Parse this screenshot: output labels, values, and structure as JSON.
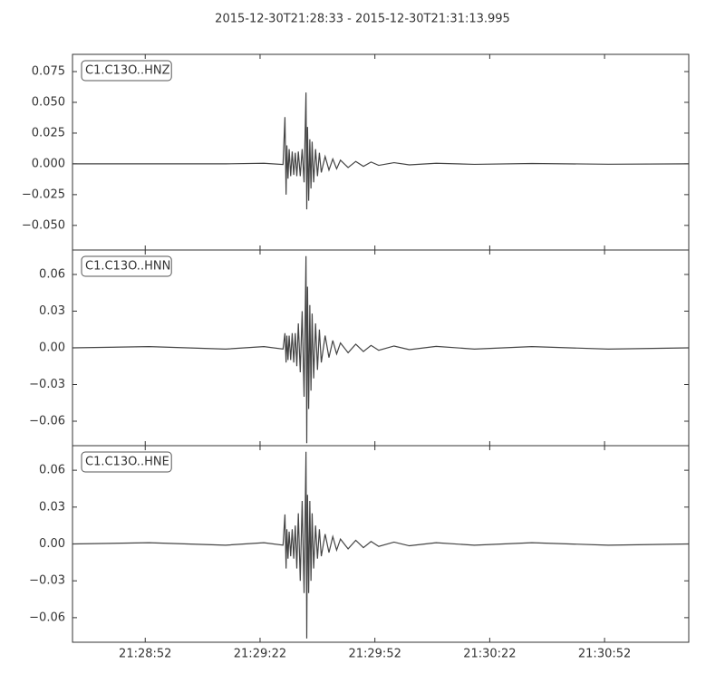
{
  "title": "2015-12-30T21:28:33  -  2015-12-30T21:31:13.995",
  "chart_data": [
    {
      "type": "line",
      "color": "#444444",
      "x": [
        0,
        20,
        40,
        50,
        55,
        55.5,
        55.8,
        56,
        56.3,
        56.6,
        57,
        57.4,
        57.8,
        58.2,
        58.6,
        59,
        59.5,
        60,
        60.5,
        61,
        61.2,
        61.4,
        61.7,
        62,
        62.3,
        62.6,
        63,
        63.5,
        64,
        64.5,
        65,
        66,
        67,
        68,
        69,
        70,
        72,
        74,
        76,
        78,
        80,
        84,
        88,
        95,
        105,
        120,
        140,
        160.995
      ],
      "series": [
        {
          "name": "C1.C13O..HNZ",
          "color": "#444444",
          "values": [
            0,
            0,
            0,
            0.0005,
            -0.0005,
            0.038,
            -0.025,
            0.015,
            -0.012,
            0.012,
            -0.01,
            0.01,
            -0.009,
            0.009,
            -0.01,
            0.01,
            -0.01,
            0.012,
            -0.015,
            0.058,
            -0.037,
            0.03,
            -0.03,
            0.02,
            -0.02,
            0.018,
            -0.015,
            0.012,
            -0.01,
            0.009,
            -0.007,
            0.006,
            -0.005,
            0.004,
            -0.004,
            0.003,
            -0.003,
            0.002,
            -0.002,
            0.0015,
            -0.0012,
            0.001,
            -0.0008,
            0.0005,
            -0.0004,
            0.0003,
            -0.0003,
            0
          ]
        }
      ],
      "xlim": [
        0,
        160.995
      ],
      "ylim": [
        -0.07,
        0.089
      ],
      "yticks": [
        {
          "value": -0.05,
          "label": "−0.050"
        },
        {
          "value": -0.025,
          "label": "−0.025"
        },
        {
          "value": 0,
          "label": "0.000"
        },
        {
          "value": 0.025,
          "label": "0.025"
        },
        {
          "value": 0.05,
          "label": "0.050"
        },
        {
          "value": 0.075,
          "label": "0.075"
        }
      ]
    },
    {
      "type": "line",
      "color": "#444444",
      "x": [
        0,
        20,
        40,
        50,
        55,
        55.5,
        55.8,
        56,
        56.3,
        56.6,
        57,
        57.4,
        57.8,
        58.2,
        58.6,
        59,
        59.5,
        60,
        60.5,
        61,
        61.2,
        61.4,
        61.7,
        62,
        62.3,
        62.6,
        63,
        63.5,
        64,
        64.5,
        65,
        66,
        67,
        68,
        69,
        70,
        72,
        74,
        76,
        78,
        80,
        84,
        88,
        95,
        105,
        120,
        140,
        160.995
      ],
      "series": [
        {
          "name": "C1.C13O..HNN",
          "color": "#444444",
          "values": [
            0,
            0.001,
            -0.001,
            0.001,
            -0.001,
            0.012,
            -0.012,
            0.01,
            -0.01,
            0.01,
            -0.01,
            0.012,
            -0.012,
            0.012,
            -0.015,
            0.02,
            -0.02,
            0.03,
            -0.04,
            0.075,
            -0.078,
            0.05,
            -0.05,
            0.035,
            -0.035,
            0.028,
            -0.025,
            0.02,
            -0.018,
            0.015,
            -0.012,
            0.01,
            -0.008,
            0.006,
            -0.005,
            0.004,
            -0.004,
            0.003,
            -0.003,
            0.002,
            -0.002,
            0.0015,
            -0.0015,
            0.0012,
            -0.001,
            0.001,
            -0.001,
            0
          ]
        }
      ],
      "xlim": [
        0,
        160.995
      ],
      "ylim": [
        -0.08,
        0.08
      ],
      "yticks": [
        {
          "value": -0.06,
          "label": "−0.06"
        },
        {
          "value": -0.03,
          "label": "−0.03"
        },
        {
          "value": 0,
          "label": "0.00"
        },
        {
          "value": 0.03,
          "label": "0.03"
        },
        {
          "value": 0.06,
          "label": "0.06"
        }
      ]
    },
    {
      "type": "line",
      "color": "#444444",
      "x": [
        0,
        20,
        40,
        50,
        55,
        55.5,
        55.8,
        56,
        56.3,
        56.6,
        57,
        57.4,
        57.8,
        58.2,
        58.6,
        59,
        59.5,
        60,
        60.5,
        61,
        61.2,
        61.4,
        61.7,
        62,
        62.3,
        62.6,
        63,
        63.5,
        64,
        64.5,
        65,
        66,
        67,
        68,
        69,
        70,
        72,
        74,
        76,
        78,
        80,
        84,
        88,
        95,
        105,
        120,
        140,
        160.995
      ],
      "series": [
        {
          "name": "C1.C13O..HNE",
          "color": "#444444",
          "values": [
            0,
            0.001,
            -0.001,
            0.001,
            -0.001,
            0.024,
            -0.02,
            0.012,
            -0.012,
            0.01,
            -0.01,
            0.012,
            -0.012,
            0.015,
            -0.02,
            0.025,
            -0.03,
            0.035,
            -0.04,
            0.075,
            -0.077,
            0.04,
            -0.04,
            0.035,
            -0.03,
            0.025,
            -0.02,
            0.015,
            -0.012,
            0.012,
            -0.01,
            0.008,
            -0.007,
            0.006,
            -0.005,
            0.004,
            -0.004,
            0.003,
            -0.003,
            0.002,
            -0.002,
            0.0015,
            -0.0015,
            0.001,
            -0.001,
            0.001,
            -0.001,
            0
          ]
        }
      ],
      "xlim": [
        0,
        160.995
      ],
      "ylim": [
        -0.08,
        0.08
      ],
      "yticks": [
        {
          "value": -0.06,
          "label": "−0.06"
        },
        {
          "value": -0.03,
          "label": "−0.03"
        },
        {
          "value": 0,
          "label": "0.00"
        },
        {
          "value": 0.03,
          "label": "0.03"
        },
        {
          "value": 0.06,
          "label": "0.06"
        }
      ],
      "xticks": [
        {
          "value": 19,
          "label": "21:28:52"
        },
        {
          "value": 49,
          "label": "21:29:22"
        },
        {
          "value": 79,
          "label": "21:29:52"
        },
        {
          "value": 109,
          "label": "21:30:22"
        },
        {
          "value": 139,
          "label": "21:30:52"
        }
      ]
    }
  ]
}
